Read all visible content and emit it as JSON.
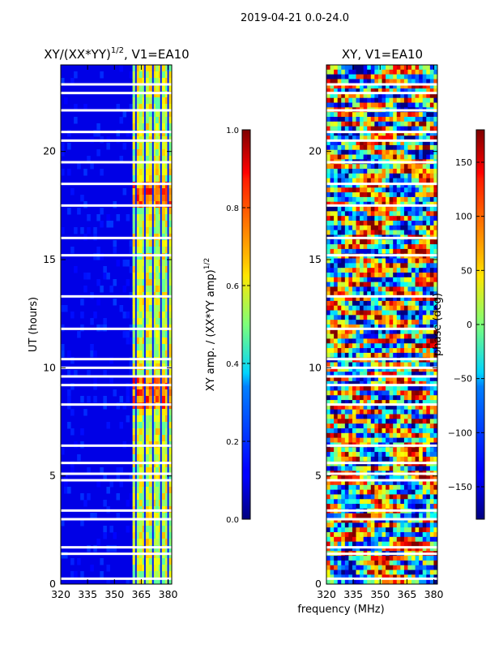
{
  "suptitle": "2019-04-21 0.0-24.0",
  "left_panel": {
    "title_main": "XY/(XX*YY)",
    "title_sup": "1/2",
    "title_rest": ", V1=EA10",
    "ylabel": "UT (hours)"
  },
  "right_panel": {
    "title": "XY, V1=EA10"
  },
  "colorbar_amp": {
    "label_main": "XY amp. / (XX*YY amp)",
    "label_sup": "1/2",
    "ticks": [
      "0.0",
      "0.2",
      "0.4",
      "0.6",
      "0.8",
      "1.0"
    ]
  },
  "colorbar_phase": {
    "label": "phase (deg)",
    "ticks": [
      "−150",
      "−100",
      "−50",
      "0",
      "50",
      "100",
      "150"
    ]
  },
  "xlabel": "frequency (MHz)",
  "colors": {
    "background": "#ffffff",
    "axis": "#000000"
  },
  "chart_data": [
    {
      "type": "heatmap",
      "title": "XY/(XX*YY)^1/2, V1=EA10",
      "xlabel": "",
      "ylabel": "UT (hours)",
      "x_ticks": [
        320,
        335,
        350,
        365,
        380
      ],
      "x_tick_labels": [
        "320",
        "335",
        "350",
        "365",
        "380"
      ],
      "xlim": [
        320,
        382
      ],
      "y_ticks": [
        0,
        5,
        10,
        15,
        20
      ],
      "y_tick_labels": [
        "0",
        "5",
        "10",
        "15",
        "20"
      ],
      "ylim": [
        0,
        24
      ],
      "colormap": "jet",
      "clim": [
        0.0,
        1.0
      ],
      "colorbar_label": "XY amp. / (XX*YY amp)^1/2",
      "high_band_mhz": [
        360,
        380
      ],
      "flagged_utc_hours": [
        0.25,
        1.4,
        1.7,
        3.0,
        3.4,
        4.8,
        5.1,
        5.6,
        6.4,
        8.3,
        9.2,
        9.6,
        10.0,
        10.4,
        11.8,
        13.3,
        15.2,
        16.0,
        17.5,
        18.5,
        19.5,
        20.5,
        20.9,
        21.9,
        22.7,
        23.1
      ]
    },
    {
      "type": "heatmap",
      "title": "XY, V1=EA10",
      "xlabel": "frequency (MHz)",
      "ylabel": "",
      "x_ticks": [
        320,
        335,
        350,
        365,
        380
      ],
      "x_tick_labels": [
        "320",
        "335",
        "350",
        "365",
        "380"
      ],
      "xlim": [
        320,
        382
      ],
      "y_ticks": [
        0,
        5,
        10,
        15,
        20
      ],
      "y_tick_labels": [
        "0",
        "5",
        "10",
        "15",
        "20"
      ],
      "ylim": [
        0,
        24
      ],
      "colormap": "jet",
      "clim": [
        -180,
        180
      ],
      "colorbar_ticks": [
        -150,
        -100,
        -50,
        0,
        50,
        100,
        150
      ],
      "colorbar_label": "phase (deg)",
      "flagged_utc_hours": [
        0.25,
        1.4,
        1.7,
        3.0,
        3.4,
        4.8,
        5.1,
        5.6,
        6.4,
        8.3,
        9.2,
        9.6,
        10.0,
        10.4,
        11.8,
        13.3,
        15.2,
        16.0,
        17.5,
        18.5,
        19.5,
        20.5,
        20.9,
        21.9,
        22.7,
        23.1
      ]
    }
  ]
}
